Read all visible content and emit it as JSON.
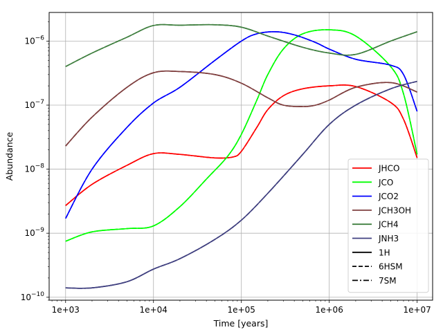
{
  "chart_data": {
    "type": "line",
    "title": "",
    "xlabel": "Time [years]",
    "ylabel": "Abundance",
    "xscale": "log",
    "yscale": "log",
    "xlim": [
      650,
      15000000
    ],
    "ylim": [
      9e-11,
      2.8e-06
    ],
    "grid": true,
    "legend_position": "lower-right",
    "x_ticks": [
      {
        "value": 1000,
        "label": "1e+03"
      },
      {
        "value": 10000,
        "label": "1e+04"
      },
      {
        "value": 100000,
        "label": "1e+05"
      },
      {
        "value": 1000000,
        "label": "1e+06"
      },
      {
        "value": 10000000,
        "label": "1e+07"
      }
    ],
    "y_ticks": [
      {
        "value": 1e-10,
        "base": "10",
        "exp": "−10"
      },
      {
        "value": 1e-09,
        "base": "10",
        "exp": "−9"
      },
      {
        "value": 1e-08,
        "base": "10",
        "exp": "−8"
      },
      {
        "value": 1e-07,
        "base": "10",
        "exp": "−7"
      },
      {
        "value": 1e-06,
        "base": "10",
        "exp": "−6"
      }
    ],
    "series": [
      {
        "name": "JHCO",
        "color": "#ff0000",
        "x": [
          1000,
          2000,
          5000,
          10000,
          20000,
          50000,
          80000,
          100000,
          150000,
          200000,
          300000,
          500000,
          1000000,
          2000000,
          5000000,
          7000000,
          10000000
        ],
        "y": [
          2.7e-09,
          5.8e-09,
          1.15e-08,
          1.75e-08,
          1.7e-08,
          1.5e-08,
          1.55e-08,
          1.9e-08,
          4.5e-08,
          8.5e-08,
          1.4e-07,
          1.8e-07,
          2e-07,
          1.95e-07,
          1.1e-07,
          6e-08,
          1.5e-08
        ]
      },
      {
        "name": "JCO",
        "color": "#00ff00",
        "x": [
          1000,
          2000,
          5000,
          10000,
          20000,
          40000,
          70000,
          100000,
          150000,
          200000,
          300000,
          500000,
          1000000,
          2000000,
          5000000,
          7000000,
          10000000
        ],
        "y": [
          7.5e-10,
          1.05e-09,
          1.18e-09,
          1.3e-09,
          2.6e-09,
          7e-09,
          1.6e-08,
          3.5e-08,
          1.2e-07,
          3e-07,
          7.5e-07,
          1.3e-06,
          1.5e-06,
          1.2e-06,
          4e-07,
          1.5e-07,
          1.7e-08
        ]
      },
      {
        "name": "JCO2",
        "color": "#0000ff",
        "x": [
          1000,
          2000,
          5000,
          10000,
          20000,
          50000,
          100000,
          150000,
          250000,
          400000,
          700000,
          1000000,
          2000000,
          5000000,
          7000000,
          10000000
        ],
        "y": [
          1.7e-09,
          1e-08,
          4.5e-08,
          1.08e-07,
          1.9e-07,
          5e-07,
          1e-06,
          1.3e-06,
          1.4e-06,
          1.25e-06,
          9.5e-07,
          7.5e-07,
          5.2e-07,
          4.2e-07,
          3e-07,
          8e-08
        ]
      },
      {
        "name": "JCH3OH",
        "color": "#7f3f3f",
        "x": [
          1000,
          2000,
          5000,
          10000,
          20000,
          50000,
          100000,
          200000,
          300000,
          500000,
          700000,
          1000000,
          2000000,
          5000000,
          10000000
        ],
        "y": [
          2.3e-08,
          6.5e-08,
          1.9e-07,
          3.2e-07,
          3.35e-07,
          3e-07,
          2.2e-07,
          1.3e-07,
          1e-07,
          9.5e-08,
          1e-07,
          1.2e-07,
          1.9e-07,
          2.25e-07,
          1.6e-07
        ]
      },
      {
        "name": "JCH4",
        "color": "#3f7f3f",
        "x": [
          1000,
          2000,
          5000,
          10000,
          20000,
          50000,
          100000,
          200000,
          500000,
          1000000,
          2000000,
          5000000,
          10000000
        ],
        "y": [
          4e-07,
          6.5e-07,
          1.15e-06,
          1.75e-06,
          1.77e-06,
          1.8e-06,
          1.65e-06,
          1.2e-06,
          8e-07,
          6.5e-07,
          6.2e-07,
          1e-06,
          1.4e-06
        ]
      },
      {
        "name": "JNH3",
        "color": "#3f3f7f",
        "x": [
          1000,
          2000,
          5000,
          10000,
          20000,
          50000,
          100000,
          200000,
          500000,
          1000000,
          2000000,
          5000000,
          10000000
        ],
        "y": [
          1.4e-10,
          1.4e-10,
          1.75e-10,
          2.75e-10,
          4e-10,
          8e-10,
          1.6e-09,
          4.2e-09,
          1.7e-08,
          5e-08,
          1e-07,
          1.8e-07,
          2.35e-07
        ]
      }
    ],
    "line_styles": [
      {
        "name": "1H",
        "dash": ""
      },
      {
        "name": "6HSM",
        "dash": "6,3"
      },
      {
        "name": "7SM",
        "dash": "8,3,2,3"
      }
    ]
  }
}
